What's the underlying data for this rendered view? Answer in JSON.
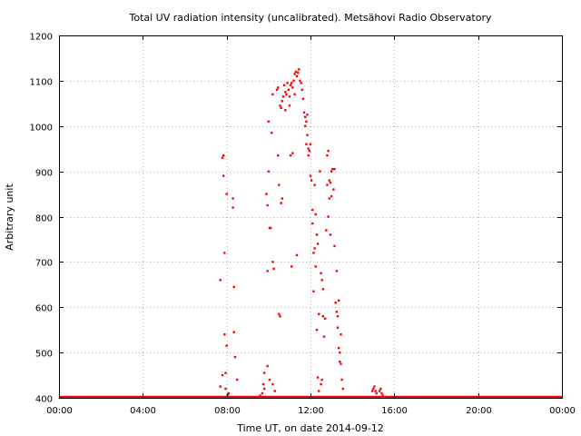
{
  "chart_data": {
    "type": "scatter",
    "title": "Total UV radiation intensity (uncalibrated). Metsähovi Radio Observatory",
    "xlabel": "Time UT, on date 2014-09-12",
    "ylabel": "Arbitrary unit",
    "x_unit": "hours UT",
    "xlim": [
      0,
      24
    ],
    "ylim": [
      400,
      1200
    ],
    "x_ticks": [
      {
        "value": 0,
        "label": "00:00"
      },
      {
        "value": 4,
        "label": "04:00"
      },
      {
        "value": 8,
        "label": "08:00"
      },
      {
        "value": 12,
        "label": "12:00"
      },
      {
        "value": 16,
        "label": "16:00"
      },
      {
        "value": 20,
        "label": "20:00"
      },
      {
        "value": 24,
        "label": "00:00"
      }
    ],
    "y_ticks": [
      {
        "value": 400,
        "label": "400"
      },
      {
        "value": 500,
        "label": "500"
      },
      {
        "value": 600,
        "label": "600"
      },
      {
        "value": 700,
        "label": "700"
      },
      {
        "value": 800,
        "label": "800"
      },
      {
        "value": 900,
        "label": "900"
      },
      {
        "value": 1000,
        "label": "1000"
      },
      {
        "value": 1100,
        "label": "1100"
      },
      {
        "value": 1200,
        "label": "1200"
      }
    ],
    "grid": true,
    "marker_color": "#ff0000",
    "baseline": {
      "value": 400,
      "x_from": 0,
      "x_to": 24
    },
    "series": [
      {
        "points": [
          [
            7.7,
            660
          ],
          [
            7.7,
            425
          ],
          [
            7.8,
            450
          ],
          [
            7.8,
            930
          ],
          [
            7.85,
            935
          ],
          [
            7.85,
            890
          ],
          [
            7.9,
            720
          ],
          [
            7.9,
            540
          ],
          [
            7.95,
            455
          ],
          [
            7.95,
            420
          ],
          [
            8.0,
            850
          ],
          [
            8.0,
            515
          ],
          [
            8.05,
            405
          ],
          [
            8.1,
            410
          ],
          [
            8.3,
            840
          ],
          [
            8.3,
            820
          ],
          [
            8.35,
            645
          ],
          [
            8.35,
            545
          ],
          [
            8.4,
            490
          ],
          [
            8.5,
            440
          ],
          [
            9.6,
            405
          ],
          [
            9.7,
            410
          ],
          [
            9.75,
            430
          ],
          [
            9.8,
            455
          ],
          [
            9.8,
            420
          ],
          [
            9.9,
            850
          ],
          [
            9.95,
            825
          ],
          [
            9.95,
            680
          ],
          [
            9.95,
            470
          ],
          [
            10.0,
            1010
          ],
          [
            10.0,
            900
          ],
          [
            10.05,
            775
          ],
          [
            10.05,
            440
          ],
          [
            10.1,
            775
          ],
          [
            10.15,
            985
          ],
          [
            10.2,
            1070
          ],
          [
            10.2,
            700
          ],
          [
            10.2,
            430
          ],
          [
            10.25,
            685
          ],
          [
            10.3,
            415
          ],
          [
            10.4,
            1080
          ],
          [
            10.45,
            1085
          ],
          [
            10.45,
            935
          ],
          [
            10.5,
            870
          ],
          [
            10.5,
            585
          ],
          [
            10.55,
            580
          ],
          [
            10.55,
            1045
          ],
          [
            10.6,
            1040
          ],
          [
            10.6,
            830
          ],
          [
            10.65,
            1055
          ],
          [
            10.65,
            840
          ],
          [
            10.7,
            1065
          ],
          [
            10.75,
            1090
          ],
          [
            10.8,
            1075
          ],
          [
            10.8,
            1035
          ],
          [
            10.85,
            1070
          ],
          [
            10.9,
            1095
          ],
          [
            10.95,
            1080
          ],
          [
            11.0,
            1065
          ],
          [
            11.0,
            1045
          ],
          [
            11.05,
            1090
          ],
          [
            11.05,
            935
          ],
          [
            11.1,
            1095
          ],
          [
            11.1,
            690
          ],
          [
            11.15,
            1085
          ],
          [
            11.15,
            940
          ],
          [
            11.2,
            1100
          ],
          [
            11.25,
            1070
          ],
          [
            11.25,
            1115
          ],
          [
            11.3,
            1120
          ],
          [
            11.35,
            1110
          ],
          [
            11.35,
            715
          ],
          [
            11.4,
            1118
          ],
          [
            11.45,
            1125
          ],
          [
            11.5,
            1100
          ],
          [
            11.55,
            1095
          ],
          [
            11.6,
            1080
          ],
          [
            11.65,
            1060
          ],
          [
            11.7,
            1030
          ],
          [
            11.75,
            1020
          ],
          [
            11.75,
            1000
          ],
          [
            11.8,
            1010
          ],
          [
            11.8,
            960
          ],
          [
            11.85,
            1025
          ],
          [
            11.85,
            980
          ],
          [
            11.9,
            950
          ],
          [
            11.9,
            935
          ],
          [
            11.95,
            945
          ],
          [
            12.0,
            960
          ],
          [
            12.0,
            890
          ],
          [
            12.05,
            880
          ],
          [
            12.1,
            815
          ],
          [
            12.1,
            785
          ],
          [
            12.15,
            720
          ],
          [
            12.15,
            635
          ],
          [
            12.2,
            870
          ],
          [
            12.2,
            730
          ],
          [
            12.25,
            805
          ],
          [
            12.25,
            690
          ],
          [
            12.3,
            760
          ],
          [
            12.3,
            550
          ],
          [
            12.35,
            740
          ],
          [
            12.35,
            445
          ],
          [
            12.4,
            585
          ],
          [
            12.4,
            415
          ],
          [
            12.45,
            900
          ],
          [
            12.5,
            675
          ],
          [
            12.5,
            430
          ],
          [
            12.55,
            660
          ],
          [
            12.55,
            440
          ],
          [
            12.6,
            640
          ],
          [
            12.6,
            580
          ],
          [
            12.65,
            535
          ],
          [
            12.7,
            575
          ],
          [
            12.75,
            770
          ],
          [
            12.8,
            935
          ],
          [
            12.8,
            870
          ],
          [
            12.85,
            945
          ],
          [
            12.85,
            800
          ],
          [
            12.9,
            880
          ],
          [
            12.9,
            840
          ],
          [
            12.95,
            875
          ],
          [
            12.95,
            760
          ],
          [
            13.0,
            900
          ],
          [
            13.0,
            845
          ],
          [
            13.05,
            905
          ],
          [
            13.1,
            860
          ],
          [
            13.15,
            735
          ],
          [
            13.15,
            905
          ],
          [
            13.2,
            610
          ],
          [
            13.25,
            680
          ],
          [
            13.25,
            590
          ],
          [
            13.3,
            580
          ],
          [
            13.3,
            555
          ],
          [
            13.35,
            615
          ],
          [
            13.35,
            510
          ],
          [
            13.4,
            480
          ],
          [
            13.4,
            500
          ],
          [
            13.45,
            540
          ],
          [
            13.45,
            475
          ],
          [
            13.5,
            440
          ],
          [
            13.55,
            420
          ],
          [
            14.95,
            415
          ],
          [
            15.0,
            420
          ],
          [
            15.05,
            425
          ],
          [
            15.1,
            415
          ],
          [
            15.15,
            410
          ],
          [
            15.3,
            415
          ],
          [
            15.35,
            420
          ],
          [
            15.4,
            410
          ],
          [
            15.45,
            405
          ]
        ]
      }
    ]
  }
}
